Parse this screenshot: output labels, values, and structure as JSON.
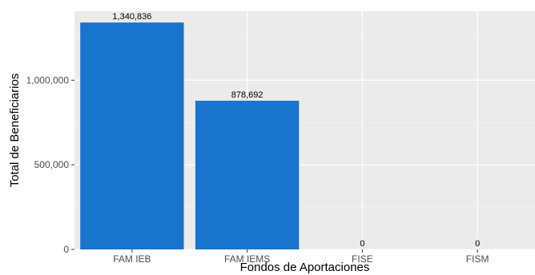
{
  "chart_data": {
    "type": "bar",
    "categories": [
      "FAM IEB",
      "FAM IEMS",
      "FISE",
      "FISM"
    ],
    "values": [
      1340836,
      878692,
      0,
      0
    ],
    "data_labels": [
      "1,340,836",
      "878,692",
      "0",
      "0"
    ],
    "xlabel": "Fondos de Aportaciones",
    "ylabel": "Total de Beneficiarios",
    "ylim": [
      0,
      1407878
    ],
    "yticks": [
      0,
      500000,
      1000000
    ],
    "ytick_labels": [
      "0",
      "500,000",
      "1,000,000"
    ],
    "grid": true,
    "legend": "none",
    "colors": {
      "bar": "#1874CD",
      "panel": "#EBEBEB",
      "grid_major": "#FFFFFF",
      "grid_minor": "#F5F5F5"
    }
  }
}
